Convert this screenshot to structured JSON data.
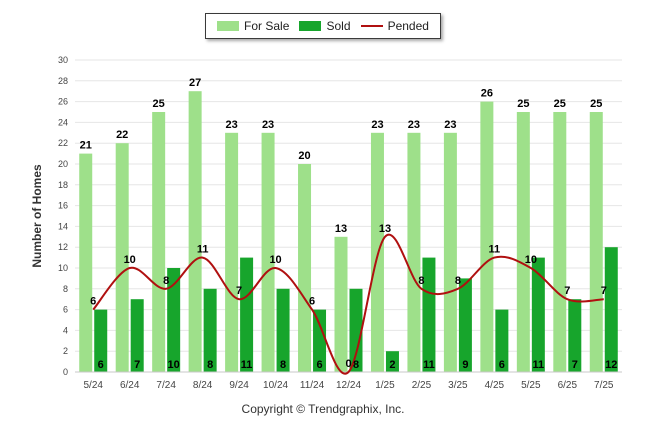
{
  "legend": {
    "items": [
      {
        "label": "For Sale",
        "color": "#9ee08a",
        "kind": "bar"
      },
      {
        "label": "Sold",
        "color": "#17a52c",
        "kind": "bar"
      },
      {
        "label": "Pended",
        "color": "#b01010",
        "kind": "line"
      }
    ]
  },
  "footer": {
    "copyright": "Copyright © Trendgraphix, Inc."
  },
  "chart_data": {
    "type": "bar",
    "categories": [
      "5/24",
      "6/24",
      "7/24",
      "8/24",
      "9/24",
      "10/24",
      "11/24",
      "12/24",
      "1/25",
      "2/25",
      "3/25",
      "4/25",
      "5/25",
      "6/25",
      "7/25"
    ],
    "ylabel": "Number of Homes",
    "ylim": [
      0,
      30
    ],
    "yticks": [
      0,
      2,
      4,
      6,
      8,
      10,
      12,
      14,
      16,
      18,
      20,
      22,
      24,
      26,
      28,
      30
    ],
    "grid": true,
    "legend_position": "top-center",
    "series": [
      {
        "name": "For Sale",
        "type": "bar",
        "color": "#9ee08a",
        "values": [
          21,
          22,
          25,
          27,
          23,
          23,
          20,
          13,
          23,
          23,
          23,
          26,
          25,
          25,
          25
        ]
      },
      {
        "name": "Sold",
        "type": "bar",
        "color": "#17a52c",
        "values": [
          6,
          7,
          10,
          8,
          11,
          8,
          6,
          8,
          2,
          11,
          9,
          6,
          11,
          7,
          12
        ]
      },
      {
        "name": "Pended",
        "type": "line",
        "color": "#b01010",
        "values": [
          6,
          10,
          8,
          11,
          7,
          10,
          6,
          0,
          13,
          8,
          8,
          11,
          10,
          7,
          7
        ]
      }
    ]
  }
}
